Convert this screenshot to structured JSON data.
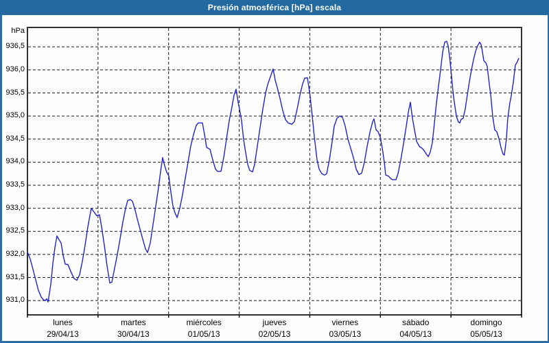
{
  "window": {
    "title": "Presión atmosférica [hPa] escala"
  },
  "colors": {
    "titlebar_bg": "#226a9f",
    "titlebar_text": "#ffffff",
    "frame_border": "#2d6da3",
    "page_bg": "#fdfdfd",
    "plot_border": "#000000",
    "grid": "#1b1b1b",
    "line": "#2222cc",
    "label_text": "#000000"
  },
  "chart_data": {
    "type": "line",
    "title": "Presión atmosférica [hPa] escala",
    "y_unit": "hPa",
    "grid": "dashed",
    "legend": "none",
    "ylim": [
      930.69,
      936.92
    ],
    "x_range_days": [
      0,
      7
    ],
    "y_ticks": [
      {
        "label": "936,5",
        "value": 936.5
      },
      {
        "label": "936,0",
        "value": 936.0
      },
      {
        "label": "935,5",
        "value": 935.5
      },
      {
        "label": "935,0",
        "value": 935.0
      },
      {
        "label": "934,5",
        "value": 934.5
      },
      {
        "label": "934,0",
        "value": 934.0
      },
      {
        "label": "933,5",
        "value": 933.5
      },
      {
        "label": "933,0",
        "value": 933.0
      },
      {
        "label": "932,5",
        "value": 932.5
      },
      {
        "label": "932,0",
        "value": 932.0
      },
      {
        "label": "931,5",
        "value": 931.5
      },
      {
        "label": "931,0",
        "value": 931.0
      }
    ],
    "x_days": [
      {
        "name": "lunes",
        "date": "29/04/13"
      },
      {
        "name": "martes",
        "date": "30/04/13"
      },
      {
        "name": "miércoles",
        "date": "01/05/13"
      },
      {
        "name": "jueves",
        "date": "02/05/13"
      },
      {
        "name": "viernes",
        "date": "03/05/13"
      },
      {
        "name": "sábado",
        "date": "04/05/13"
      },
      {
        "name": "domingo",
        "date": "05/05/13"
      }
    ],
    "series": [
      {
        "name": "Presión atmosférica",
        "color": "#2222cc",
        "points": [
          [
            0,
            932.05
          ],
          [
            0.039,
            931.9
          ],
          [
            0.078,
            931.68
          ],
          [
            0.117,
            931.45
          ],
          [
            0.156,
            931.22
          ],
          [
            0.194,
            931.08
          ],
          [
            0.224,
            931.02
          ],
          [
            0.253,
            931
          ],
          [
            0.272,
            931.04
          ],
          [
            0.292,
            930.97
          ],
          [
            0.331,
            931.35
          ],
          [
            0.36,
            931.8
          ],
          [
            0.389,
            932.15
          ],
          [
            0.418,
            932.4
          ],
          [
            0.447,
            932.32
          ],
          [
            0.476,
            932.25
          ],
          [
            0.506,
            931.98
          ],
          [
            0.535,
            931.79
          ],
          [
            0.574,
            931.78
          ],
          [
            0.622,
            931.6
          ],
          [
            0.661,
            931.48
          ],
          [
            0.7,
            931.44
          ],
          [
            0.739,
            931.56
          ],
          [
            0.778,
            931.85
          ],
          [
            0.817,
            932.2
          ],
          [
            0.856,
            932.6
          ],
          [
            0.904,
            933
          ],
          [
            0.943,
            932.92
          ],
          [
            0.982,
            932.84
          ],
          [
            1.021,
            932.86
          ],
          [
            1.05,
            932.6
          ],
          [
            1.089,
            932.2
          ],
          [
            1.128,
            931.75
          ],
          [
            1.167,
            931.38
          ],
          [
            1.196,
            931.4
          ],
          [
            1.235,
            931.7
          ],
          [
            1.274,
            932
          ],
          [
            1.313,
            932.35
          ],
          [
            1.351,
            932.7
          ],
          [
            1.39,
            933
          ],
          [
            1.42,
            933.17
          ],
          [
            1.458,
            933.19
          ],
          [
            1.488,
            933.15
          ],
          [
            1.527,
            932.95
          ],
          [
            1.556,
            932.77
          ],
          [
            1.594,
            932.55
          ],
          [
            1.633,
            932.33
          ],
          [
            1.672,
            932.12
          ],
          [
            1.701,
            932.04
          ],
          [
            1.74,
            932.25
          ],
          [
            1.779,
            932.65
          ],
          [
            1.818,
            933.05
          ],
          [
            1.857,
            933.45
          ],
          [
            1.886,
            933.8
          ],
          [
            1.915,
            934.1
          ],
          [
            1.944,
            933.92
          ],
          [
            1.974,
            933.78
          ],
          [
            2.003,
            933.7
          ],
          [
            2.032,
            933.35
          ],
          [
            2.061,
            933.05
          ],
          [
            2.09,
            932.9
          ],
          [
            2.12,
            932.8
          ],
          [
            2.158,
            933
          ],
          [
            2.197,
            933.3
          ],
          [
            2.236,
            933.65
          ],
          [
            2.275,
            934
          ],
          [
            2.314,
            934.35
          ],
          [
            2.353,
            934.6
          ],
          [
            2.392,
            934.8
          ],
          [
            2.421,
            934.85
          ],
          [
            2.479,
            934.85
          ],
          [
            2.508,
            934.6
          ],
          [
            2.538,
            934.32
          ],
          [
            2.586,
            934.28
          ],
          [
            2.625,
            934.05
          ],
          [
            2.664,
            933.85
          ],
          [
            2.693,
            933.8
          ],
          [
            2.742,
            933.8
          ],
          [
            2.781,
            934.1
          ],
          [
            2.819,
            934.5
          ],
          [
            2.858,
            934.9
          ],
          [
            2.897,
            935.2
          ],
          [
            2.926,
            935.45
          ],
          [
            2.956,
            935.58
          ],
          [
            2.985,
            935.3
          ],
          [
            3.004,
            935.15
          ],
          [
            3.033,
            934.9
          ],
          [
            3.062,
            934.5
          ],
          [
            3.092,
            934.2
          ],
          [
            3.121,
            933.95
          ],
          [
            3.15,
            933.82
          ],
          [
            3.189,
            933.79
          ],
          [
            3.218,
            933.95
          ],
          [
            3.257,
            934.35
          ],
          [
            3.296,
            934.75
          ],
          [
            3.335,
            935.15
          ],
          [
            3.374,
            935.5
          ],
          [
            3.403,
            935.68
          ],
          [
            3.442,
            935.85
          ],
          [
            3.481,
            936.02
          ],
          [
            3.51,
            935.78
          ],
          [
            3.539,
            935.62
          ],
          [
            3.578,
            935.38
          ],
          [
            3.617,
            935.12
          ],
          [
            3.656,
            934.92
          ],
          [
            3.694,
            934.85
          ],
          [
            3.743,
            934.82
          ],
          [
            3.782,
            934.88
          ],
          [
            3.821,
            935.15
          ],
          [
            3.86,
            935.45
          ],
          [
            3.899,
            935.7
          ],
          [
            3.928,
            935.82
          ],
          [
            3.967,
            935.83
          ],
          [
            4.006,
            935.42
          ],
          [
            4.035,
            935
          ],
          [
            4.064,
            934.55
          ],
          [
            4.103,
            934.05
          ],
          [
            4.132,
            933.85
          ],
          [
            4.171,
            933.75
          ],
          [
            4.21,
            933.72
          ],
          [
            4.239,
            933.75
          ],
          [
            4.278,
            934.05
          ],
          [
            4.317,
            934.45
          ],
          [
            4.346,
            934.78
          ],
          [
            4.385,
            934.95
          ],
          [
            4.424,
            935
          ],
          [
            4.463,
            934.97
          ],
          [
            4.501,
            934.78
          ],
          [
            4.54,
            934.5
          ],
          [
            4.579,
            934.3
          ],
          [
            4.618,
            934.1
          ],
          [
            4.657,
            933.85
          ],
          [
            4.696,
            933.73
          ],
          [
            4.735,
            933.76
          ],
          [
            4.774,
            934
          ],
          [
            4.813,
            934.35
          ],
          [
            4.852,
            934.65
          ],
          [
            4.891,
            934.88
          ],
          [
            4.91,
            934.94
          ],
          [
            4.939,
            934.7
          ],
          [
            4.968,
            934.66
          ],
          [
            4.998,
            934.54
          ],
          [
            5.027,
            934.3
          ],
          [
            5.056,
            934
          ],
          [
            5.075,
            933.72
          ],
          [
            5.114,
            933.7
          ],
          [
            5.143,
            933.65
          ],
          [
            5.172,
            933.62
          ],
          [
            5.221,
            933.62
          ],
          [
            5.25,
            933.75
          ],
          [
            5.289,
            934.05
          ],
          [
            5.328,
            934.4
          ],
          [
            5.367,
            934.78
          ],
          [
            5.396,
            935.08
          ],
          [
            5.425,
            935.3
          ],
          [
            5.454,
            934.95
          ],
          [
            5.483,
            934.7
          ],
          [
            5.513,
            934.45
          ],
          [
            5.552,
            934.34
          ],
          [
            5.591,
            934.3
          ],
          [
            5.62,
            934.25
          ],
          [
            5.649,
            934.18
          ],
          [
            5.678,
            934.12
          ],
          [
            5.707,
            934.22
          ],
          [
            5.736,
            934.42
          ],
          [
            5.765,
            934.85
          ],
          [
            5.795,
            935.3
          ],
          [
            5.824,
            935.65
          ],
          [
            5.853,
            936
          ],
          [
            5.882,
            936.38
          ],
          [
            5.911,
            936.6
          ],
          [
            5.94,
            936.62
          ],
          [
            5.96,
            936.52
          ],
          [
            5.979,
            936.3
          ],
          [
            5.998,
            936.03
          ],
          [
            6.018,
            935.7
          ],
          [
            6.037,
            935.42
          ],
          [
            6.057,
            935.2
          ],
          [
            6.076,
            935
          ],
          [
            6.105,
            934.87
          ],
          [
            6.125,
            934.85
          ],
          [
            6.144,
            934.93
          ],
          [
            6.173,
            934.95
          ],
          [
            6.202,
            935.15
          ],
          [
            6.231,
            935.45
          ],
          [
            6.261,
            935.75
          ],
          [
            6.29,
            936
          ],
          [
            6.319,
            936.22
          ],
          [
            6.348,
            936.4
          ],
          [
            6.377,
            936.52
          ],
          [
            6.407,
            936.6
          ],
          [
            6.426,
            936.55
          ],
          [
            6.445,
            936.4
          ],
          [
            6.465,
            936.2
          ],
          [
            6.494,
            936.15
          ],
          [
            6.513,
            936.08
          ],
          [
            6.542,
            935.7
          ],
          [
            6.562,
            935.48
          ],
          [
            6.591,
            935
          ],
          [
            6.62,
            934.7
          ],
          [
            6.649,
            934.66
          ],
          [
            6.678,
            934.52
          ],
          [
            6.708,
            934.32
          ],
          [
            6.737,
            934.18
          ],
          [
            6.756,
            934.15
          ],
          [
            6.785,
            934.5
          ],
          [
            6.805,
            934.95
          ],
          [
            6.834,
            935.28
          ],
          [
            6.853,
            935.43
          ],
          [
            6.883,
            935.73
          ],
          [
            6.912,
            936.1
          ],
          [
            6.941,
            936.18
          ],
          [
            6.96,
            936.25
          ]
        ]
      }
    ]
  }
}
